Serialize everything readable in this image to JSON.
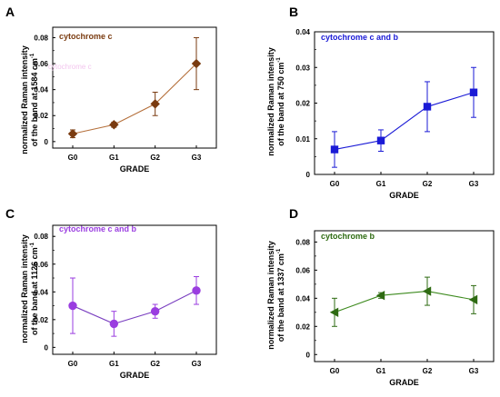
{
  "chart_data": [
    {
      "type": "line",
      "panel": "A",
      "title": "cytochrome c",
      "ylabel_line1": "normalized Raman intensity",
      "ylabel_line2": "of the band at 1584 cm",
      "ylabel_sup": "-1",
      "xlabel": "GRADE",
      "categories": [
        "G0",
        "G1",
        "G2",
        "G3"
      ],
      "series": [
        {
          "values": [
            0.006,
            0.013,
            0.029,
            0.06
          ],
          "errors": [
            0.003,
            0.002,
            0.009,
            0.02
          ]
        }
      ],
      "ylim": [
        -0.005,
        0.088
      ],
      "yticks": [
        0,
        0.02,
        0.04,
        0.06,
        0.08
      ],
      "ytick_labels": [
        "0",
        "0.02",
        "0.04",
        "0.06",
        "0.08"
      ],
      "marker": "diamond",
      "color": "#7a3b10",
      "line_color": "#b5703c",
      "ghost_text": "cytochrome c"
    },
    {
      "type": "line",
      "panel": "B",
      "title": "cytochrome c and b",
      "ylabel_line1": "normalized Raman intensity",
      "ylabel_line2": "of the band at 750 cm",
      "ylabel_sup": "-1",
      "xlabel": "GRADE",
      "categories": [
        "G0",
        "G1",
        "G2",
        "G3"
      ],
      "series": [
        {
          "values": [
            0.007,
            0.0095,
            0.019,
            0.023
          ],
          "errors": [
            0.005,
            0.003,
            0.007,
            0.007
          ]
        }
      ],
      "ylim": [
        0,
        0.04
      ],
      "yticks": [
        0,
        0.01,
        0.02,
        0.03,
        0.04
      ],
      "ytick_labels": [
        "0",
        "0.01",
        "0.02",
        "0.03",
        "0.04"
      ],
      "marker": "square",
      "color": "#1a1ad6",
      "line_color": "#1a1ad6"
    },
    {
      "type": "line",
      "panel": "C",
      "title": "cytochrome c and b",
      "ylabel_line1": "normalized Raman intensity",
      "ylabel_line2": "of the band at 1126 cm",
      "ylabel_sup": "-1",
      "xlabel": "GRADE",
      "categories": [
        "G0",
        "G1",
        "G2",
        "G3"
      ],
      "series": [
        {
          "values": [
            0.03,
            0.017,
            0.026,
            0.041
          ],
          "errors": [
            0.02,
            0.009,
            0.005,
            0.01
          ]
        }
      ],
      "ylim": [
        -0.005,
        0.088
      ],
      "yticks": [
        0,
        0.02,
        0.04,
        0.06,
        0.08
      ],
      "ytick_labels": [
        "0",
        "0.02",
        "0.04",
        "0.06",
        "0.08"
      ],
      "marker": "circle",
      "color": "#9a3de0",
      "line_color": "#7a3fc0"
    },
    {
      "type": "line",
      "panel": "D",
      "title": "cytochrome b",
      "ylabel_line1": "normalized Raman intensity",
      "ylabel_line2": "of the band at 1337 cm",
      "ylabel_sup": "-1",
      "xlabel": "GRADE",
      "categories": [
        "G0",
        "G1",
        "G2",
        "G3"
      ],
      "series": [
        {
          "values": [
            0.03,
            0.042,
            0.045,
            0.039
          ],
          "errors": [
            0.01,
            0.002,
            0.01,
            0.01
          ]
        }
      ],
      "ylim": [
        -0.005,
        0.088
      ],
      "yticks": [
        0,
        0.02,
        0.04,
        0.06,
        0.08
      ],
      "ytick_labels": [
        "0",
        "0.02",
        "0.04",
        "0.06",
        "0.08"
      ],
      "marker": "triangle-left",
      "color": "#2e6b12",
      "line_color": "#3d8a1e"
    }
  ]
}
